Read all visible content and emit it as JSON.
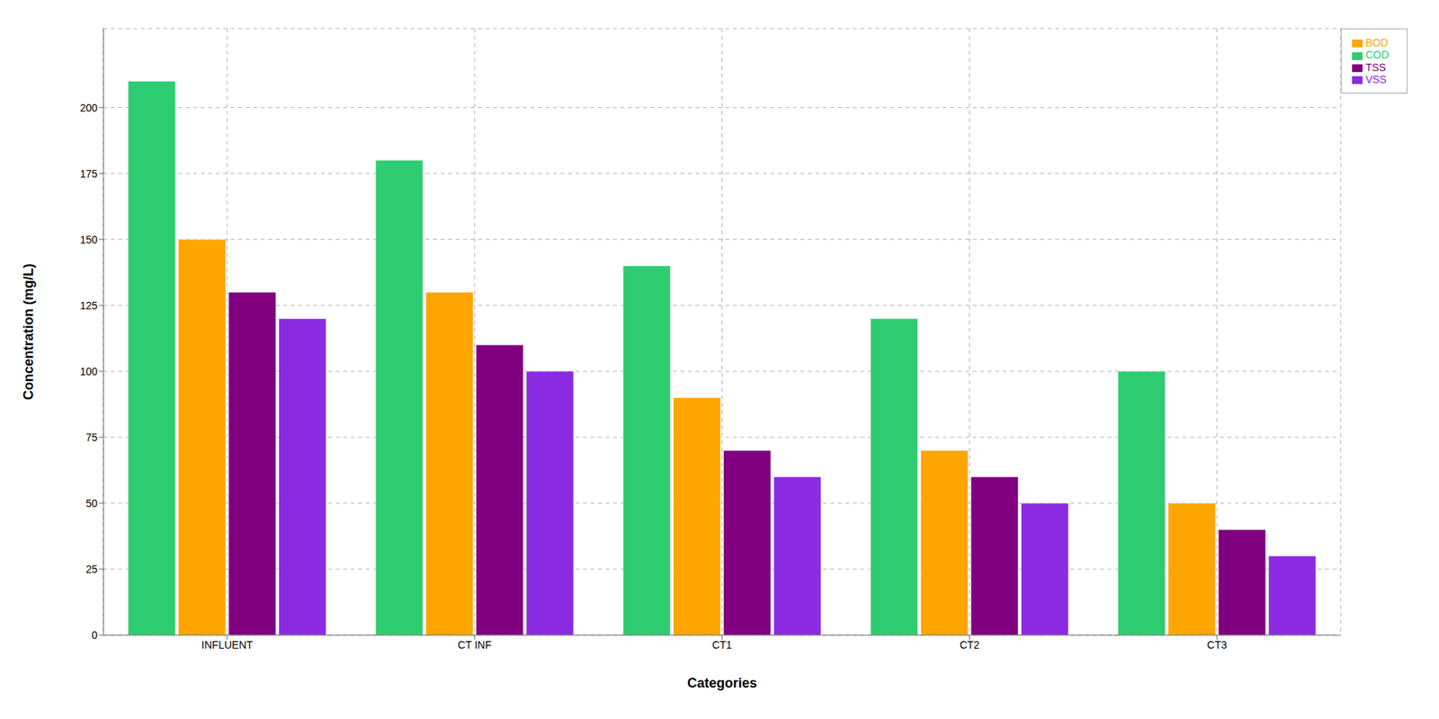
{
  "chart_data": {
    "type": "bar",
    "categories": [
      "INFLUENT",
      "CT INF",
      "CT1",
      "CT2",
      "CT3"
    ],
    "series": [
      {
        "name": "COD",
        "color": "#2ecc71",
        "values": [
          210,
          180,
          140,
          120,
          100
        ]
      },
      {
        "name": "BOD",
        "color": "#ffa500",
        "values": [
          150,
          130,
          90,
          70,
          50
        ]
      },
      {
        "name": "TSS",
        "color": "#800080",
        "values": [
          130,
          110,
          70,
          60,
          40
        ]
      },
      {
        "name": "VSS",
        "color": "#8a2be2",
        "values": [
          120,
          100,
          60,
          50,
          30
        ]
      }
    ],
    "xlabel": "Categories",
    "ylabel": "Concentration (mg/L)",
    "ylim": [
      0,
      230
    ],
    "yticks": [
      0,
      25,
      50,
      75,
      100,
      125,
      150,
      175,
      200
    ],
    "grid": true,
    "legend": "upper right"
  }
}
